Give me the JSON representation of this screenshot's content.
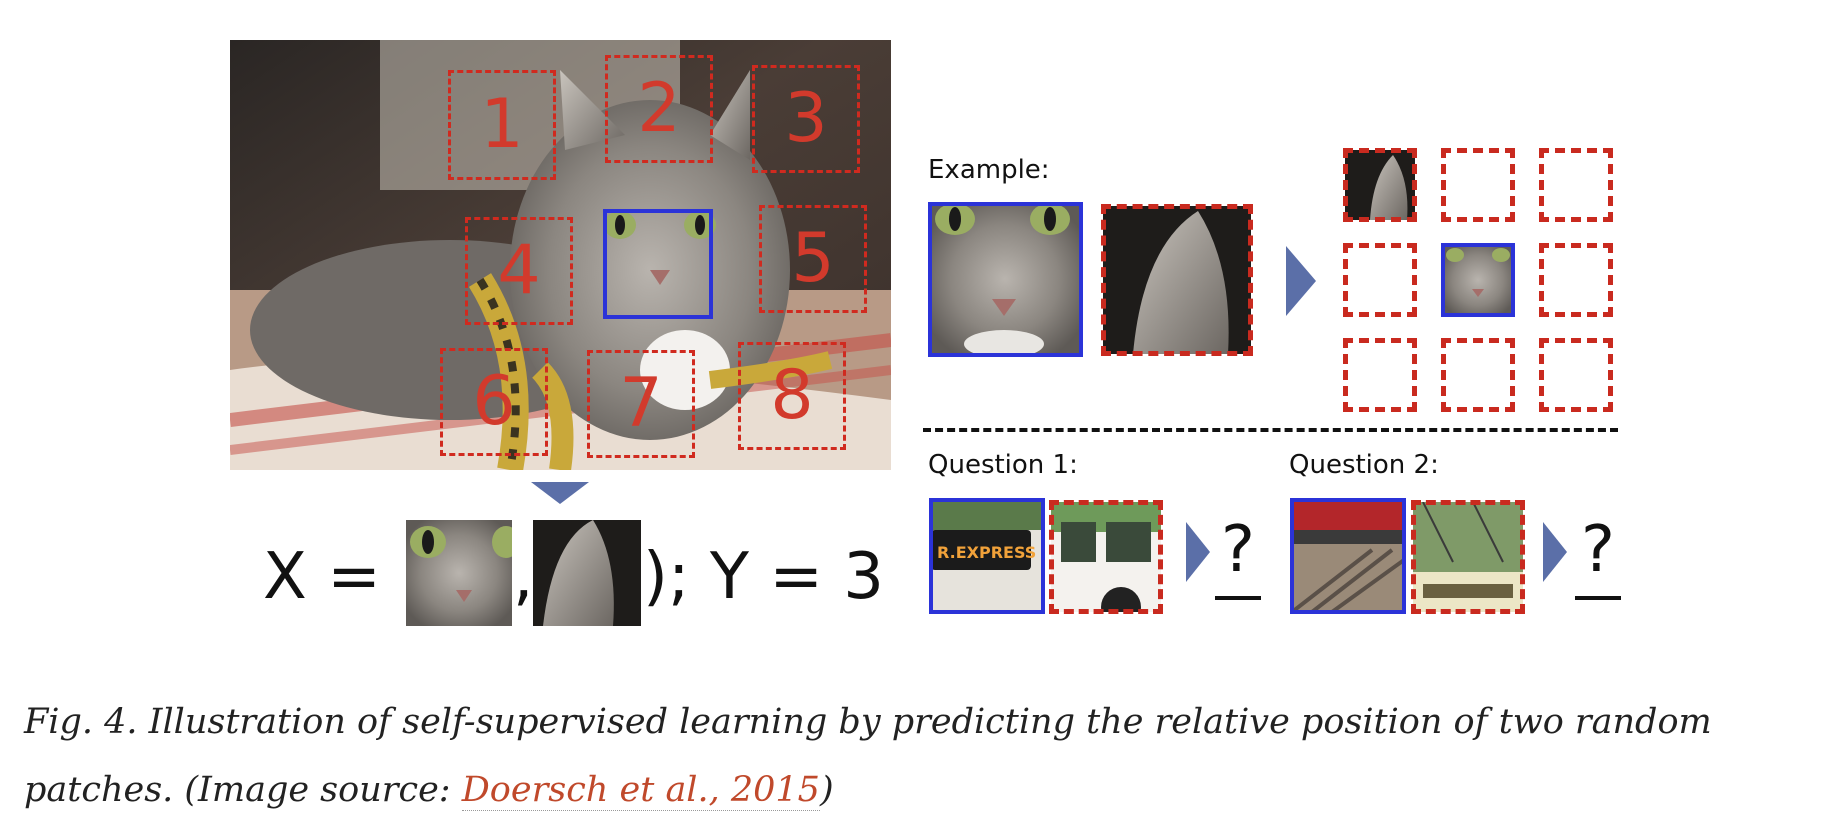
{
  "figure": {
    "patch_numbers": [
      "1",
      "2",
      "3",
      "4",
      "5",
      "6",
      "7",
      "8"
    ],
    "example_label": "Example:",
    "question1_label": "Question 1:",
    "question2_label": "Question 2:",
    "equation_prefix": "X = (",
    "equation_comma": ",",
    "equation_suffix": "); Y = 3",
    "question_mark": "?",
    "bus_sign_text": "R.EXPRESS",
    "colors": {
      "dashed_red": "#d02a1f",
      "blue": "#2b33d8",
      "arrow": "#5b6fa8"
    }
  },
  "caption": {
    "text": "Fig. 4. Illustration of self-supervised learning by predicting the relative position of two random patches. (Image source: ",
    "link_text": "Doersch et al., 2015",
    "suffix": ")"
  }
}
